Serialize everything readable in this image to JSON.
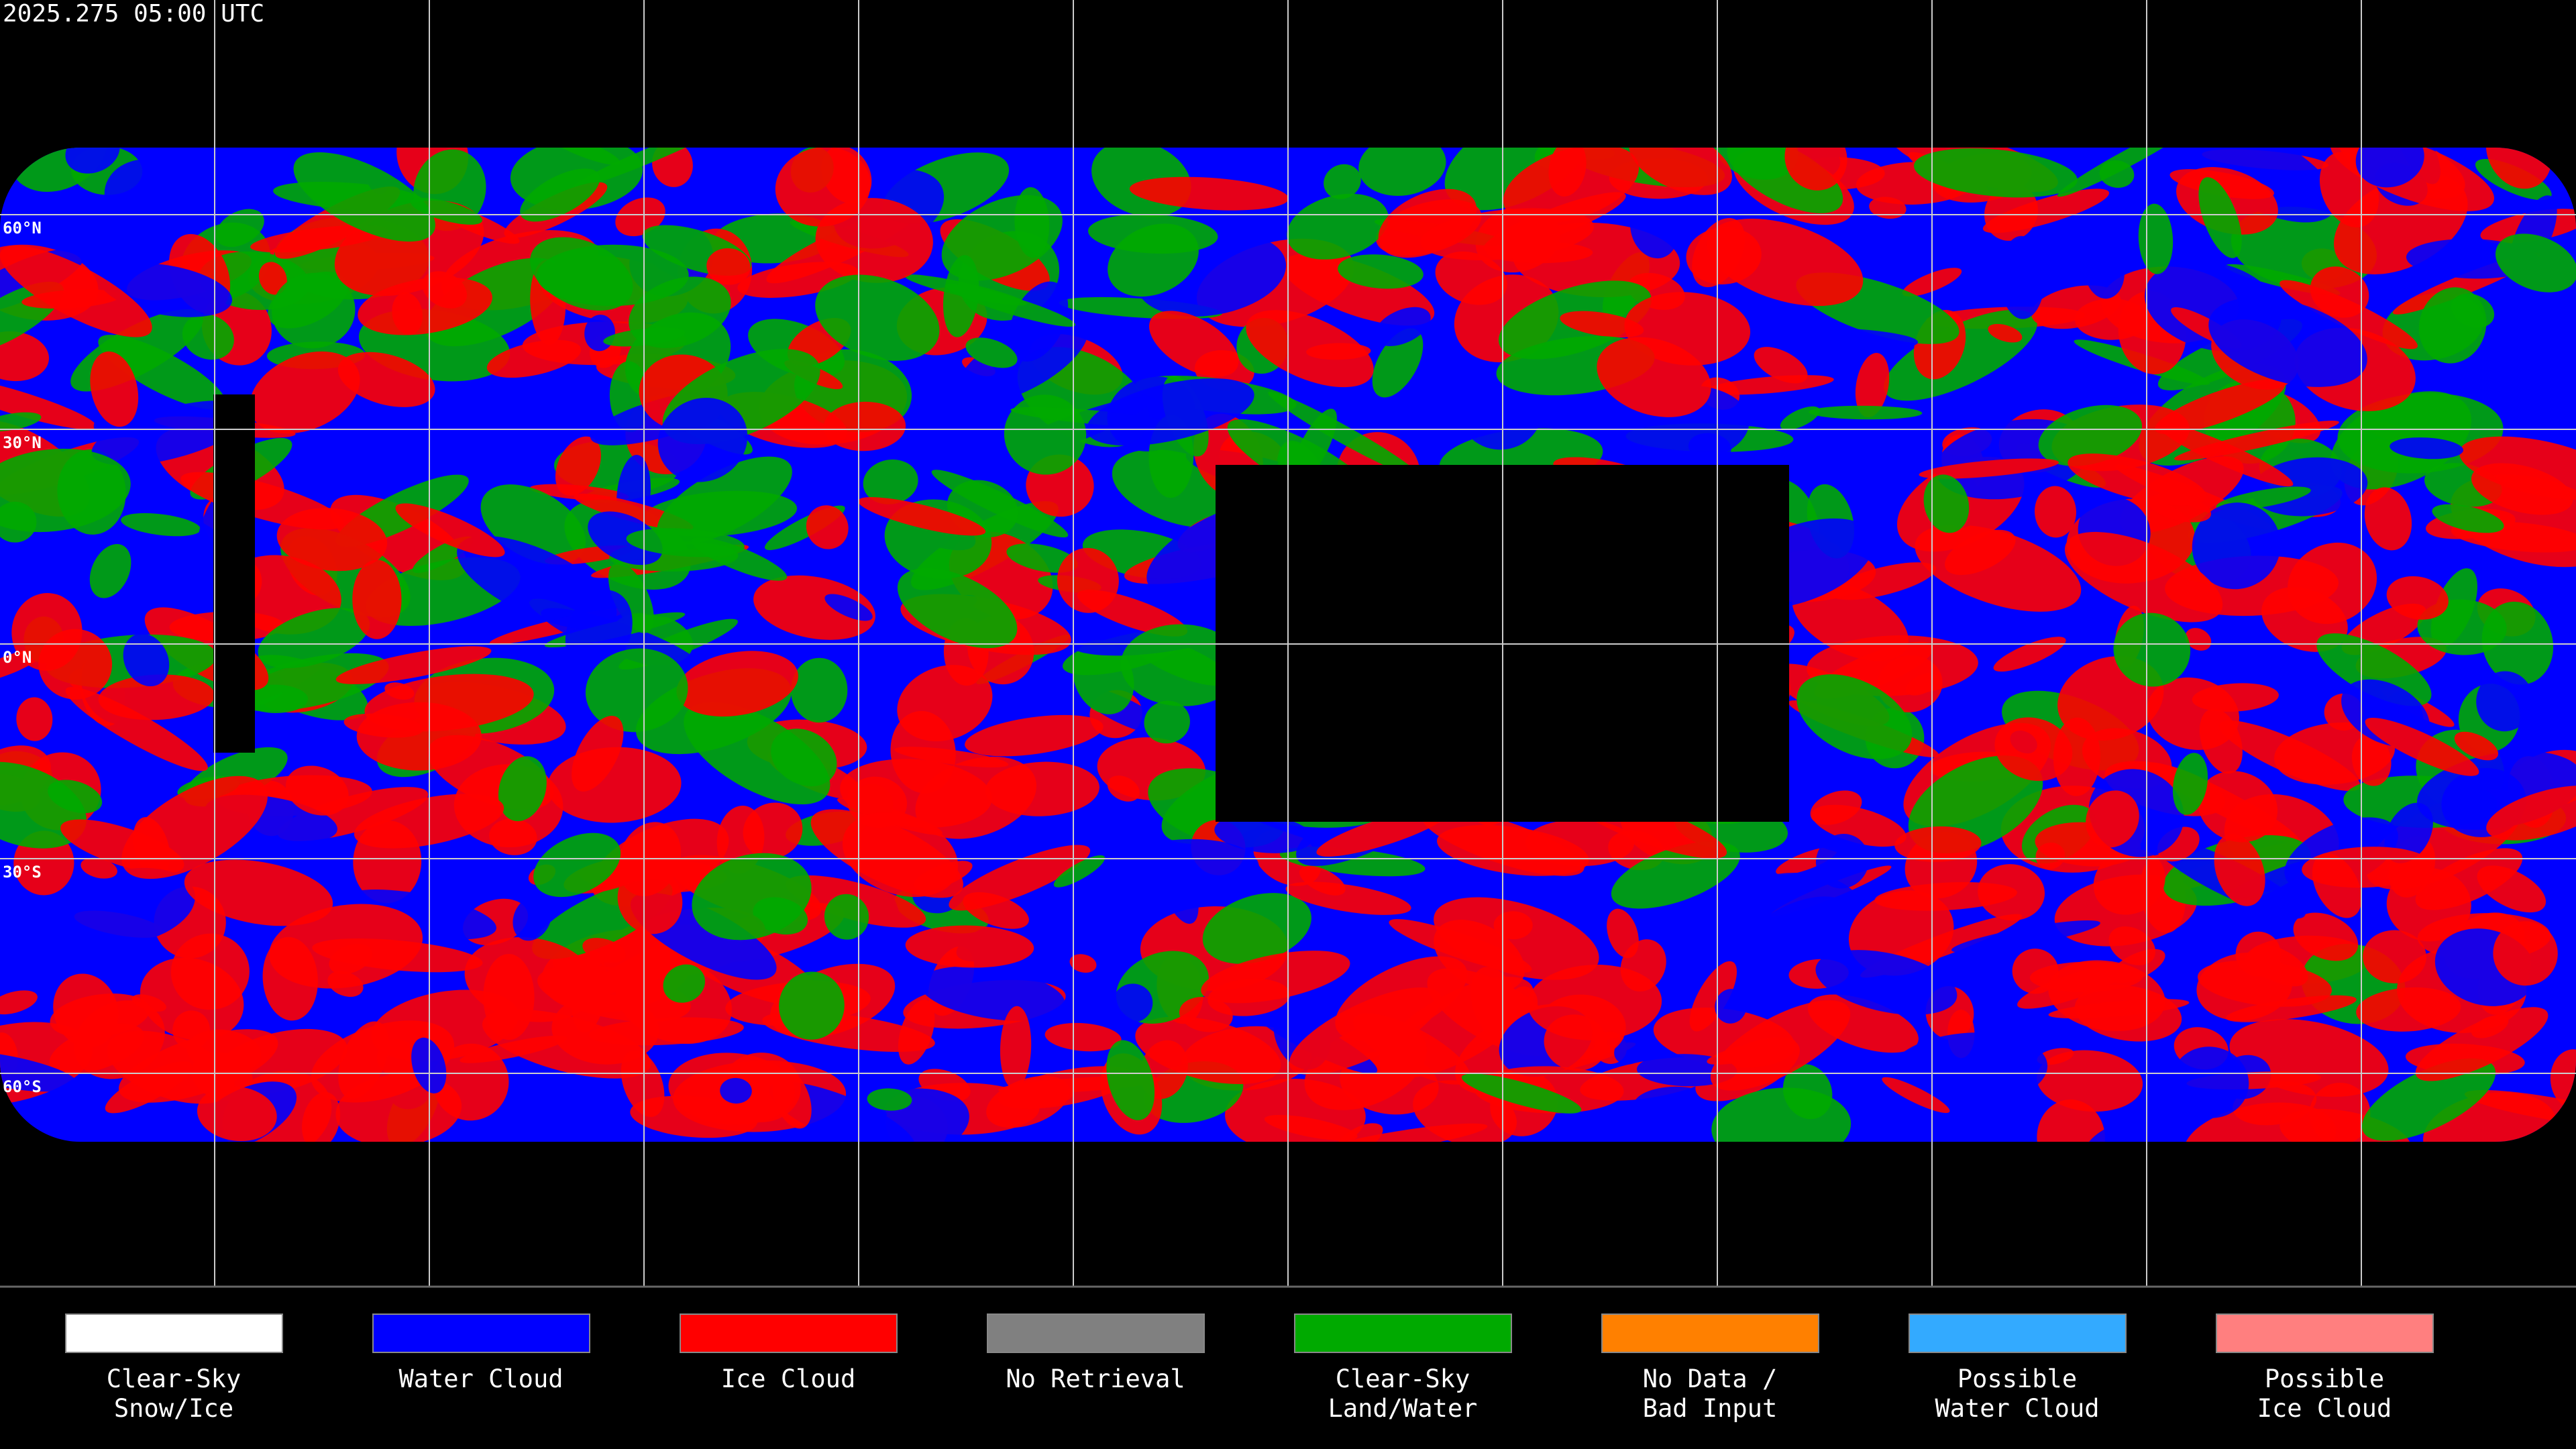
{
  "timestamp": "2025.275 05:00 UTC",
  "latitude_labels": [
    "60°N",
    "30°N",
    "0°N",
    "30°S",
    "60°S"
  ],
  "legend": [
    {
      "lines": [
        "Clear-Sky",
        "Snow/Ice"
      ],
      "color": "#ffffff"
    },
    {
      "lines": [
        "Water Cloud"
      ],
      "color": "#0000ff"
    },
    {
      "lines": [
        "Ice Cloud"
      ],
      "color": "#ff0000"
    },
    {
      "lines": [
        "No Retrieval"
      ],
      "color": "#808080"
    },
    {
      "lines": [
        "Clear-Sky",
        "Land/Water"
      ],
      "color": "#00aa00"
    },
    {
      "lines": [
        "No Data /",
        "Bad Input"
      ],
      "color": "#ff8000"
    },
    {
      "lines": [
        "Possible",
        "Water Cloud"
      ],
      "color": "#33aaff"
    },
    {
      "lines": [
        "Possible",
        "Ice Cloud"
      ],
      "color": "#ff7f7f"
    }
  ]
}
